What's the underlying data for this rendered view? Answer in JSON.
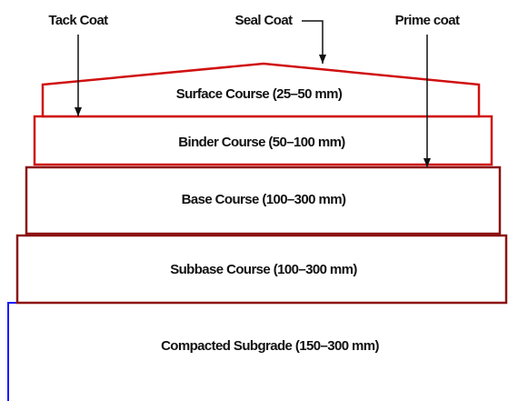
{
  "labels": {
    "tack_coat": "Tack Coat",
    "seal_coat": "Seal Coat",
    "prime_coat": "Prime coat"
  },
  "layers": [
    {
      "label": "Surface Course (25–50 mm)"
    },
    {
      "label": "Binder Course (50–100 mm)"
    },
    {
      "label": "Base Course (100–300 mm)"
    },
    {
      "label": "Subbase Course (100–300 mm)"
    },
    {
      "label": "Compacted Subgrade (150–300 mm)"
    }
  ]
}
